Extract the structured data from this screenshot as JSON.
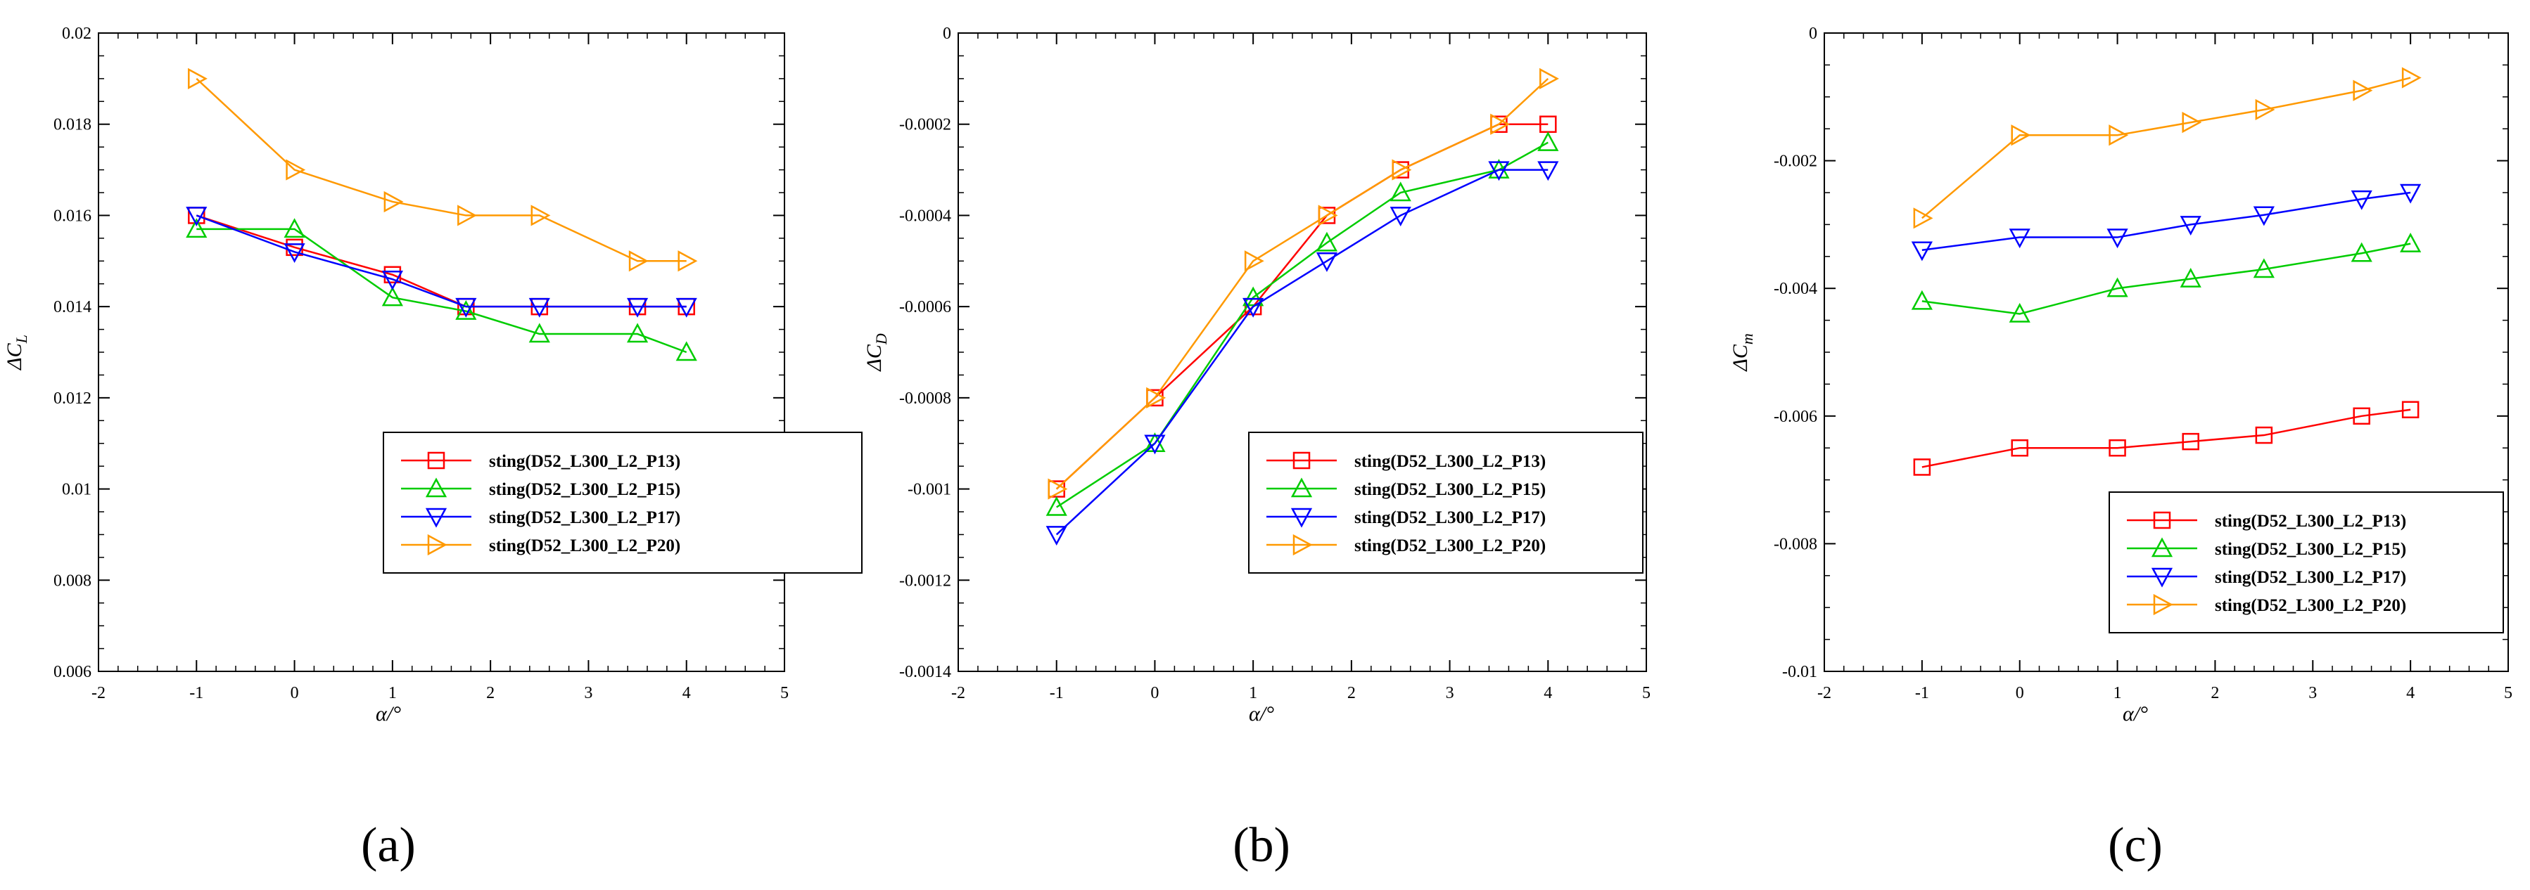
{
  "chart_data": [
    {
      "type": "line",
      "panel": "(a)",
      "xlabel": "α/°",
      "ylabel": "ΔC",
      "ylabel_sub": "L",
      "xlim": [
        -2,
        5
      ],
      "ylim": [
        0.006,
        0.02
      ],
      "xticks": [
        -2,
        -1,
        0,
        1,
        2,
        3,
        4,
        5
      ],
      "xtick_labels": [
        "-2",
        "-1",
        "0",
        "1",
        "2",
        "3",
        "4",
        "5"
      ],
      "yticks": [
        0.006,
        0.008,
        0.01,
        0.012,
        0.014,
        0.016,
        0.018,
        0.02
      ],
      "ytick_labels": [
        "0.006",
        "0.008",
        "0.01",
        "0.012",
        "0.014",
        "0.016",
        "0.018",
        "0.02"
      ],
      "legend_position": "lower-right",
      "series": [
        {
          "name": "sting(D52_L300_L2_P13)",
          "color": "#ff0000",
          "marker": "square",
          "x": [
            -1,
            0,
            1,
            1.75,
            2.5,
            3.5,
            4
          ],
          "y": [
            0.016,
            0.0153,
            0.0147,
            0.014,
            0.014,
            0.014,
            0.014
          ]
        },
        {
          "name": "sting(D52_L300_L2_P15)",
          "color": "#00cc00",
          "marker": "triangle-up",
          "x": [
            -1,
            0,
            1,
            1.75,
            2.5,
            3.5,
            4
          ],
          "y": [
            0.0157,
            0.0157,
            0.0142,
            0.0139,
            0.0134,
            0.0134,
            0.013
          ]
        },
        {
          "name": "sting(D52_L300_L2_P17)",
          "color": "#0000ff",
          "marker": "triangle-down",
          "x": [
            -1,
            0,
            1,
            1.75,
            2.5,
            3.5,
            4
          ],
          "y": [
            0.016,
            0.0152,
            0.0146,
            0.014,
            0.014,
            0.014,
            0.014
          ]
        },
        {
          "name": "sting(D52_L300_L2_P20)",
          "color": "#ff9900",
          "marker": "triangle-right",
          "x": [
            -1,
            0,
            1,
            1.75,
            2.5,
            3.5,
            4
          ],
          "y": [
            0.019,
            0.017,
            0.0163,
            0.016,
            0.016,
            0.015,
            0.015
          ]
        }
      ]
    },
    {
      "type": "line",
      "panel": "(b)",
      "xlabel": "α/°",
      "ylabel": "ΔC",
      "ylabel_sub": "D",
      "xlim": [
        -2,
        5
      ],
      "ylim": [
        -0.0014,
        0
      ],
      "xticks": [
        -2,
        -1,
        0,
        1,
        2,
        3,
        4,
        5
      ],
      "xtick_labels": [
        "-2",
        "-1",
        "0",
        "1",
        "2",
        "3",
        "4",
        "5"
      ],
      "yticks": [
        -0.0014,
        -0.0012,
        -0.001,
        -0.0008,
        -0.0006,
        -0.0004,
        -0.0002,
        0
      ],
      "ytick_labels": [
        "-0.0014",
        "-0.0012",
        "-0.001",
        "-0.0008",
        "-0.0006",
        "-0.0004",
        "-0.0002",
        "0"
      ],
      "legend_position": "lower-right",
      "series": [
        {
          "name": "sting(D52_L300_L2_P13)",
          "color": "#ff0000",
          "marker": "square",
          "x": [
            -1,
            0,
            1,
            1.75,
            2.5,
            3.5,
            4
          ],
          "y": [
            -0.001,
            -0.0008,
            -0.0006,
            -0.0004,
            -0.0003,
            -0.0002,
            -0.0002
          ]
        },
        {
          "name": "sting(D52_L300_L2_P15)",
          "color": "#00cc00",
          "marker": "triangle-up",
          "x": [
            -1,
            0,
            1,
            1.75,
            2.5,
            3.5,
            4
          ],
          "y": [
            -0.00104,
            -0.0009,
            -0.00058,
            -0.00046,
            -0.00035,
            -0.0003,
            -0.00024
          ]
        },
        {
          "name": "sting(D52_L300_L2_P17)",
          "color": "#0000ff",
          "marker": "triangle-down",
          "x": [
            -1,
            0,
            1,
            1.75,
            2.5,
            3.5,
            4
          ],
          "y": [
            -0.0011,
            -0.0009,
            -0.0006,
            -0.0005,
            -0.0004,
            -0.0003,
            -0.0003
          ]
        },
        {
          "name": "sting(D52_L300_L2_P20)",
          "color": "#ff9900",
          "marker": "triangle-right",
          "x": [
            -1,
            0,
            1,
            1.75,
            2.5,
            3.5,
            4
          ],
          "y": [
            -0.001,
            -0.0008,
            -0.0005,
            -0.0004,
            -0.0003,
            -0.0002,
            -0.0001
          ]
        }
      ]
    },
    {
      "type": "line",
      "panel": "(c)",
      "xlabel": "α/°",
      "ylabel": "ΔC",
      "ylabel_sub": "m",
      "xlim": [
        -2,
        5
      ],
      "ylim": [
        -0.01,
        0
      ],
      "xticks": [
        -2,
        -1,
        0,
        1,
        2,
        3,
        4,
        5
      ],
      "xtick_labels": [
        "-2",
        "-1",
        "0",
        "1",
        "2",
        "3",
        "4",
        "5"
      ],
      "yticks": [
        -0.01,
        -0.008,
        -0.006,
        -0.004,
        -0.002,
        0
      ],
      "ytick_labels": [
        "-0.01",
        "-0.008",
        "-0.006",
        "-0.004",
        "-0.002",
        "0"
      ],
      "legend_position": "lower-right",
      "series": [
        {
          "name": "sting(D52_L300_L2_P13)",
          "color": "#ff0000",
          "marker": "square",
          "x": [
            -1,
            0,
            1,
            1.75,
            2.5,
            3.5,
            4
          ],
          "y": [
            -0.0068,
            -0.0065,
            -0.0065,
            -0.0064,
            -0.0063,
            -0.006,
            -0.0059
          ]
        },
        {
          "name": "sting(D52_L300_L2_P15)",
          "color": "#00cc00",
          "marker": "triangle-up",
          "x": [
            -1,
            0,
            1,
            1.75,
            2.5,
            3.5,
            4
          ],
          "y": [
            -0.0042,
            -0.0044,
            -0.004,
            -0.00385,
            -0.0037,
            -0.00345,
            -0.0033
          ]
        },
        {
          "name": "sting(D52_L300_L2_P17)",
          "color": "#0000ff",
          "marker": "triangle-down",
          "x": [
            -1,
            0,
            1,
            1.75,
            2.5,
            3.5,
            4
          ],
          "y": [
            -0.0034,
            -0.0032,
            -0.0032,
            -0.003,
            -0.00285,
            -0.0026,
            -0.0025
          ]
        },
        {
          "name": "sting(D52_L300_L2_P20)",
          "color": "#ff9900",
          "marker": "triangle-right",
          "x": [
            -1,
            0,
            1,
            1.75,
            2.5,
            3.5,
            4
          ],
          "y": [
            -0.0029,
            -0.0016,
            -0.0016,
            -0.0014,
            -0.0012,
            -0.0009,
            -0.0007
          ]
        }
      ]
    }
  ]
}
